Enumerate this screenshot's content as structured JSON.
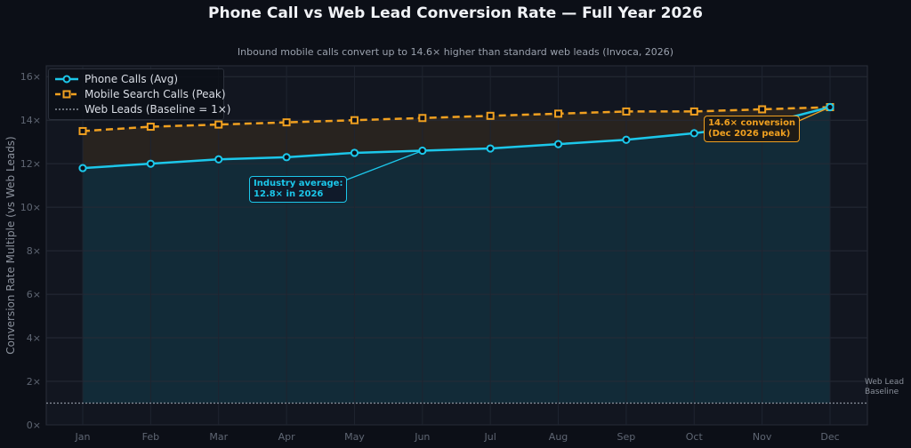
{
  "chart_data": {
    "type": "line",
    "title": "Phone Call vs Web Lead Conversion Rate — Full Year 2026",
    "subtitle": "Inbound mobile calls convert up to 14.6× higher than standard web leads (Invoca, 2026)",
    "ylabel": "Conversion Rate Multiple (vs Web Leads)",
    "xlabel": "",
    "categories": [
      "Jan",
      "Feb",
      "Mar",
      "Apr",
      "May",
      "Jun",
      "Jul",
      "Aug",
      "Sep",
      "Oct",
      "Nov",
      "Dec"
    ],
    "ylim": [
      0,
      16.5
    ],
    "yticks": [
      0,
      2,
      4,
      6,
      8,
      10,
      12,
      14,
      16
    ],
    "ytick_labels": [
      "0×",
      "2×",
      "4×",
      "6×",
      "8×",
      "10×",
      "12×",
      "14×",
      "16×"
    ],
    "grid": true,
    "legend_position": "top-left",
    "series": [
      {
        "name": "Phone Calls (Avg)",
        "values": [
          11.8,
          12.0,
          12.2,
          12.3,
          12.5,
          12.6,
          12.7,
          12.9,
          13.1,
          13.4,
          13.8,
          14.6
        ],
        "color": "#1cc7ea",
        "style": "solid",
        "marker": "circle"
      },
      {
        "name": "Mobile Search Calls (Peak)",
        "values": [
          13.5,
          13.7,
          13.8,
          13.9,
          14.0,
          14.1,
          14.2,
          14.3,
          14.4,
          14.4,
          14.5,
          14.6
        ],
        "color": "#f0a020",
        "style": "dashed",
        "marker": "square"
      },
      {
        "name": "Web Leads (Baseline = 1×)",
        "values": [
          1,
          1,
          1,
          1,
          1,
          1,
          1,
          1,
          1,
          1,
          1,
          1
        ],
        "color": "#8a909b",
        "style": "dotted",
        "marker": "none"
      }
    ],
    "annotations": [
      {
        "text_line1": "Industry average:",
        "text_line2": "12.8× in 2026",
        "target_category": "Jun",
        "color": "#1cc7ea"
      },
      {
        "text_line1": "14.6× conversion",
        "text_line2": "(Dec 2026 peak)",
        "target_category": "Dec",
        "color": "#f0a020"
      },
      {
        "text_line1": "Web Lead",
        "text_line2": "Baseline",
        "color": "#8a909b"
      }
    ]
  }
}
